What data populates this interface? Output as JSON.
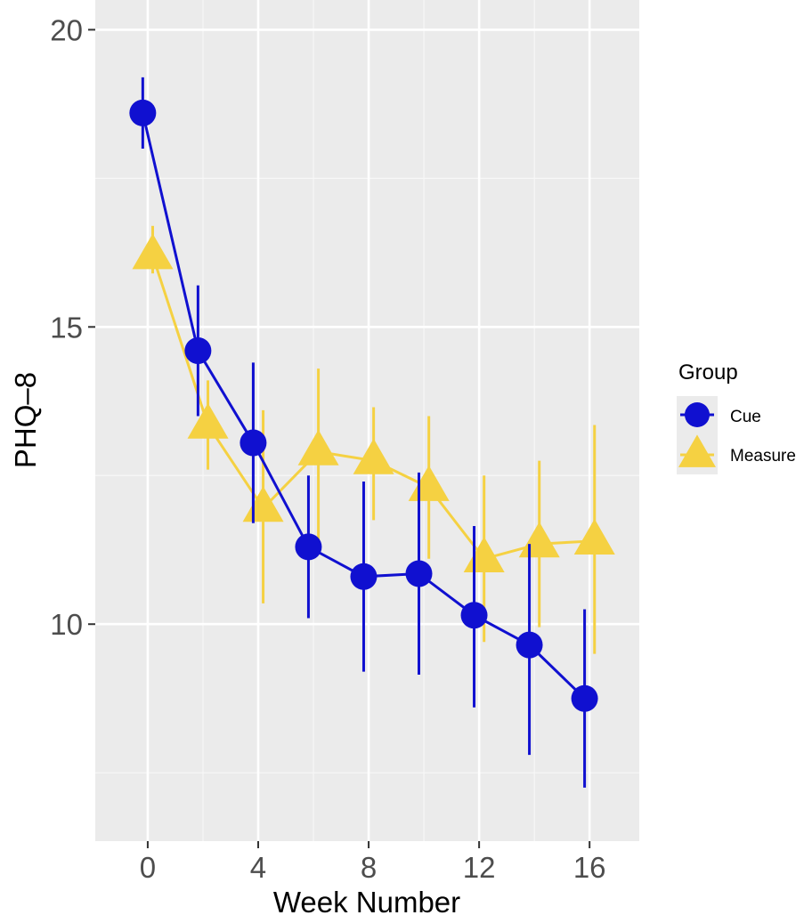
{
  "chart_data": {
    "type": "line",
    "xlabel": "Week Number",
    "ylabel": "PHQ–8",
    "xlim": [
      -1.9,
      17.8
    ],
    "ylim": [
      6.35,
      20.5
    ],
    "x_ticks": [
      0,
      4,
      8,
      12,
      16
    ],
    "x_tick_labels": [
      "0",
      "4",
      "8",
      "12",
      "16"
    ],
    "y_ticks": [
      10,
      15,
      20
    ],
    "y_tick_labels": [
      "10",
      "15",
      "20"
    ],
    "grid": true,
    "legend": {
      "title": "Group",
      "position": "right"
    },
    "series": [
      {
        "name": "Cue",
        "color": "#1010d0",
        "marker": "circle",
        "points": [
          {
            "x": 0,
            "y": 18.6,
            "ymin": 18.0,
            "ymax": 19.2
          },
          {
            "x": 2,
            "y": 14.6,
            "ymin": 13.5,
            "ymax": 15.7
          },
          {
            "x": 4,
            "y": 13.05,
            "ymin": 11.7,
            "ymax": 14.4
          },
          {
            "x": 6,
            "y": 11.3,
            "ymin": 10.1,
            "ymax": 12.5
          },
          {
            "x": 8,
            "y": 10.8,
            "ymin": 9.2,
            "ymax": 12.4
          },
          {
            "x": 10,
            "y": 10.85,
            "ymin": 9.15,
            "ymax": 12.55
          },
          {
            "x": 12,
            "y": 10.15,
            "ymin": 8.6,
            "ymax": 11.65
          },
          {
            "x": 14,
            "y": 9.65,
            "ymin": 7.8,
            "ymax": 11.35
          },
          {
            "x": 16,
            "y": 8.75,
            "ymin": 7.25,
            "ymax": 10.25
          }
        ]
      },
      {
        "name": "Measure",
        "color": "#f5d142",
        "marker": "triangle",
        "points": [
          {
            "x": 0,
            "y": 16.2,
            "ymin": 15.9,
            "ymax": 16.7
          },
          {
            "x": 2,
            "y": 13.35,
            "ymin": 12.6,
            "ymax": 14.1
          },
          {
            "x": 4,
            "y": 11.95,
            "ymin": 10.35,
            "ymax": 13.6
          },
          {
            "x": 6,
            "y": 12.9,
            "ymin": 11.4,
            "ymax": 14.3
          },
          {
            "x": 8,
            "y": 12.75,
            "ymin": 11.75,
            "ymax": 13.65
          },
          {
            "x": 10,
            "y": 12.3,
            "ymin": 11.1,
            "ymax": 13.5
          },
          {
            "x": 12,
            "y": 11.1,
            "ymin": 9.7,
            "ymax": 12.5
          },
          {
            "x": 14,
            "y": 11.35,
            "ymin": 9.95,
            "ymax": 12.75
          },
          {
            "x": 16,
            "y": 11.4,
            "ymin": 9.5,
            "ymax": 13.35
          }
        ]
      }
    ]
  }
}
